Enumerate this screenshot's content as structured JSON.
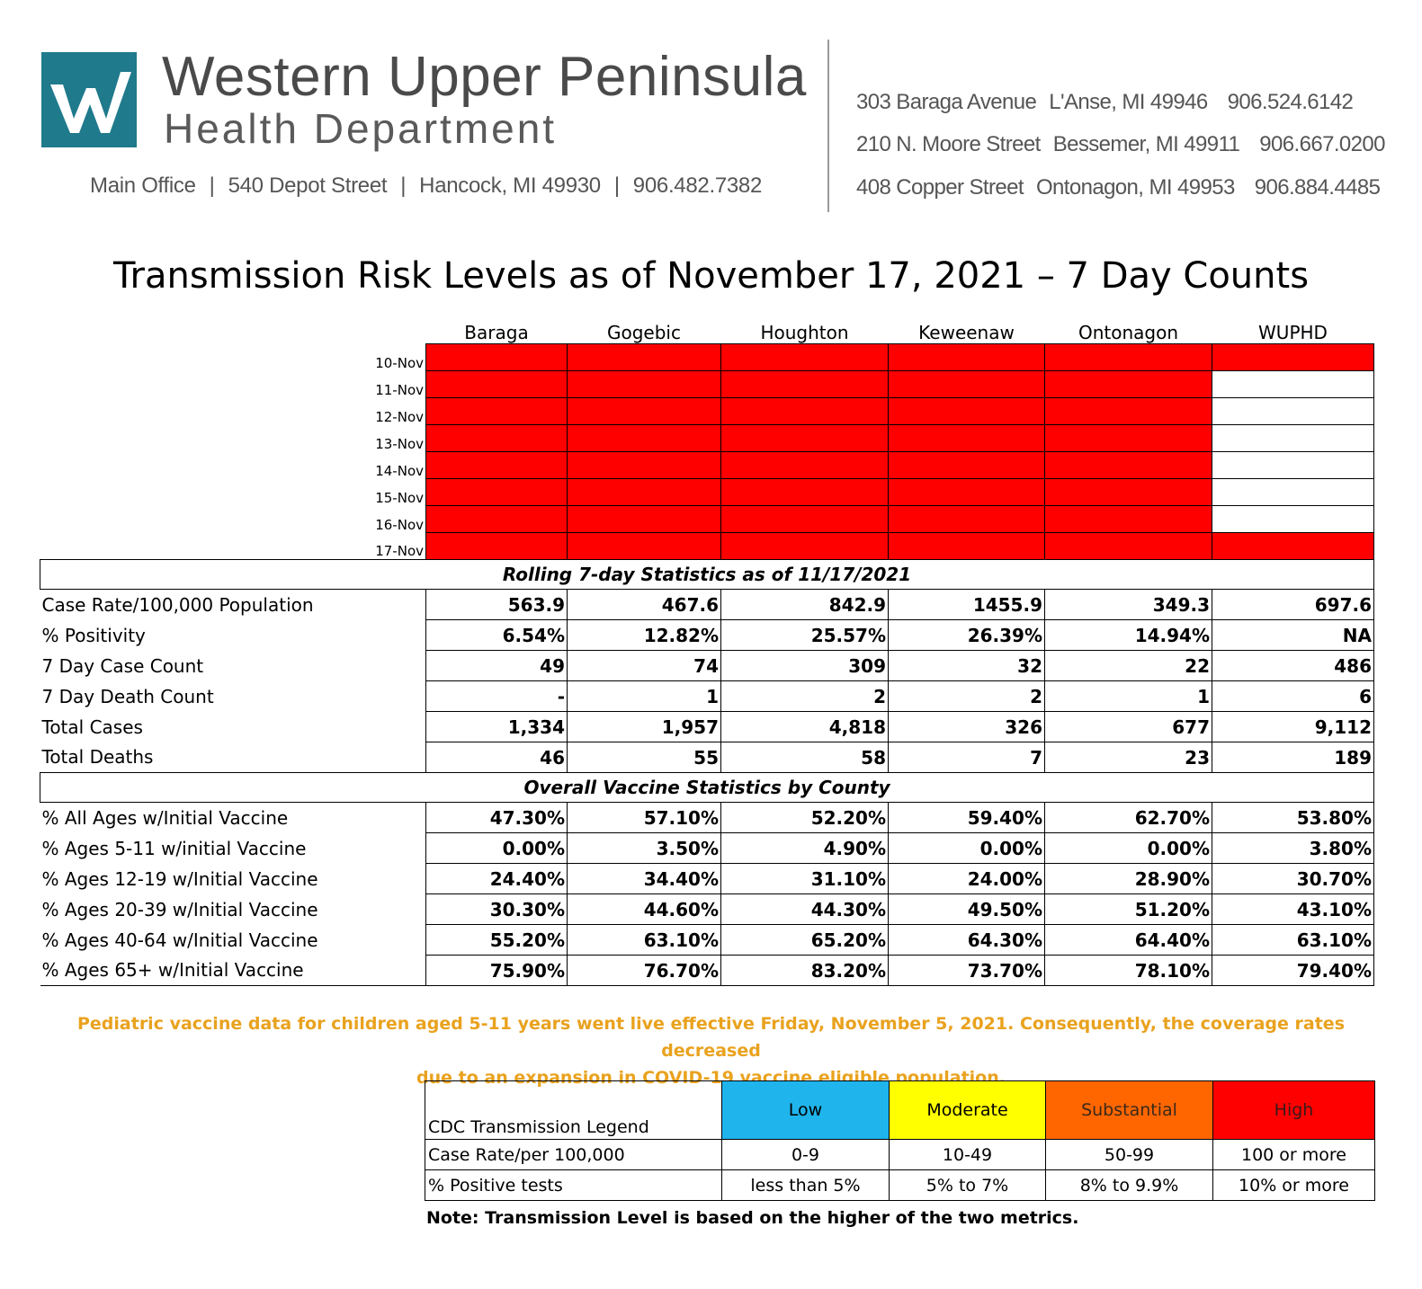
{
  "header": {
    "org_line1": "Western Upper Peninsula",
    "org_line2": "Health Department",
    "main_office": {
      "label": "Main Office",
      "street": "540 Depot Street",
      "city": "Hancock, MI 49930",
      "phone": "906.482.7382",
      "separator": "|"
    },
    "branches": [
      {
        "street": "303 Baraga Avenue",
        "city": "L'Anse, MI 49946",
        "phone": "906.524.6142"
      },
      {
        "street": "210 N. Moore Street",
        "city": "Bessemer, MI 49911",
        "phone": "906.667.0200"
      },
      {
        "street": "408 Copper Street",
        "city": "Ontonagon, MI 49953",
        "phone": "906.884.4485"
      }
    ]
  },
  "title": "Transmission Risk Levels as of November 17, 2021 – 7 Day Counts",
  "counties": [
    "Baraga",
    "Gogebic",
    "Houghton",
    "Keweenaw",
    "Ontonagon",
    "WUPHD"
  ],
  "risk_grid": {
    "dates": [
      "10-Nov",
      "11-Nov",
      "12-Nov",
      "13-Nov",
      "14-Nov",
      "15-Nov",
      "16-Nov",
      "17-Nov"
    ],
    "level_colors": {
      "high": "#ff0000",
      "none": "#ffffff"
    },
    "levels": [
      [
        "high",
        "high",
        "high",
        "high",
        "high",
        "high"
      ],
      [
        "high",
        "high",
        "high",
        "high",
        "high",
        "none"
      ],
      [
        "high",
        "high",
        "high",
        "high",
        "high",
        "none"
      ],
      [
        "high",
        "high",
        "high",
        "high",
        "high",
        "none"
      ],
      [
        "high",
        "high",
        "high",
        "high",
        "high",
        "none"
      ],
      [
        "high",
        "high",
        "high",
        "high",
        "high",
        "none"
      ],
      [
        "high",
        "high",
        "high",
        "high",
        "high",
        "none"
      ],
      [
        "high",
        "high",
        "high",
        "high",
        "high",
        "high"
      ]
    ]
  },
  "rolling": {
    "heading": "Rolling 7-day Statistics as of 11/17/2021",
    "rows": [
      {
        "label": "Case Rate/100,000 Population",
        "values": [
          "563.9",
          "467.6",
          "842.9",
          "1455.9",
          "349.3",
          "697.6"
        ]
      },
      {
        "label": "% Positivity",
        "values": [
          "6.54%",
          "12.82%",
          "25.57%",
          "26.39%",
          "14.94%",
          "NA"
        ]
      },
      {
        "label": "7 Day Case Count",
        "values": [
          "49",
          "74",
          "309",
          "32",
          "22",
          "486"
        ]
      },
      {
        "label": "7 Day Death Count",
        "values": [
          "-",
          "1",
          "2",
          "2",
          "1",
          "6"
        ]
      },
      {
        "label": "Total Cases",
        "values": [
          "1,334",
          "1,957",
          "4,818",
          "326",
          "677",
          "9,112"
        ]
      },
      {
        "label": "Total Deaths",
        "values": [
          "46",
          "55",
          "58",
          "7",
          "23",
          "189"
        ]
      }
    ]
  },
  "vaccine": {
    "heading": "Overall Vaccine Statistics by County",
    "rows": [
      {
        "label": "% All Ages w/Initial Vaccine",
        "values": [
          "47.30%",
          "57.10%",
          "52.20%",
          "59.40%",
          "62.70%",
          "53.80%"
        ]
      },
      {
        "label": "% Ages 5-11 w/initial Vaccine",
        "values": [
          "0.00%",
          "3.50%",
          "4.90%",
          "0.00%",
          "0.00%",
          "3.80%"
        ]
      },
      {
        "label": "% Ages 12-19 w/Initial Vaccine",
        "values": [
          "24.40%",
          "34.40%",
          "31.10%",
          "24.00%",
          "28.90%",
          "30.70%"
        ]
      },
      {
        "label": "% Ages 20-39 w/Initial Vaccine",
        "values": [
          "30.30%",
          "44.60%",
          "44.30%",
          "49.50%",
          "51.20%",
          "43.10%"
        ]
      },
      {
        "label": "% Ages 40-64 w/Initial Vaccine",
        "values": [
          "55.20%",
          "63.10%",
          "65.20%",
          "64.30%",
          "64.40%",
          "63.10%"
        ]
      },
      {
        "label": "% Ages 65+ w/Initial Vaccine",
        "values": [
          "75.90%",
          "76.70%",
          "83.20%",
          "73.70%",
          "78.10%",
          "79.40%"
        ]
      }
    ]
  },
  "pediatric_note": {
    "line1": "Pediatric vaccine data for children aged 5-11 years went live effective Friday, November 5, 2021. Consequently, the coverage rates decreased",
    "line2": "due to an expansion in COVID-19 vaccine eligible population.",
    "color": "#e9a21e"
  },
  "legend": {
    "title": "CDC Transmission Legend",
    "levels": [
      {
        "name": "Low",
        "color": "#1fb4ec"
      },
      {
        "name": "Moderate",
        "color": "#ffff00"
      },
      {
        "name": "Substantial",
        "color": "#ff6600"
      },
      {
        "name": "High",
        "color": "#ff0000"
      }
    ],
    "case_rate_label": "Case Rate/per 100,000",
    "case_rate_ranges": [
      "0-9",
      "10-49",
      "50-99",
      "100 or more"
    ],
    "positive_label": "% Positive tests",
    "positive_ranges": [
      "less than 5%",
      "5% to 7%",
      "8% to 9.9%",
      "10% or more"
    ],
    "note": "Note: Transmission Level is based on the higher of the two metrics."
  }
}
